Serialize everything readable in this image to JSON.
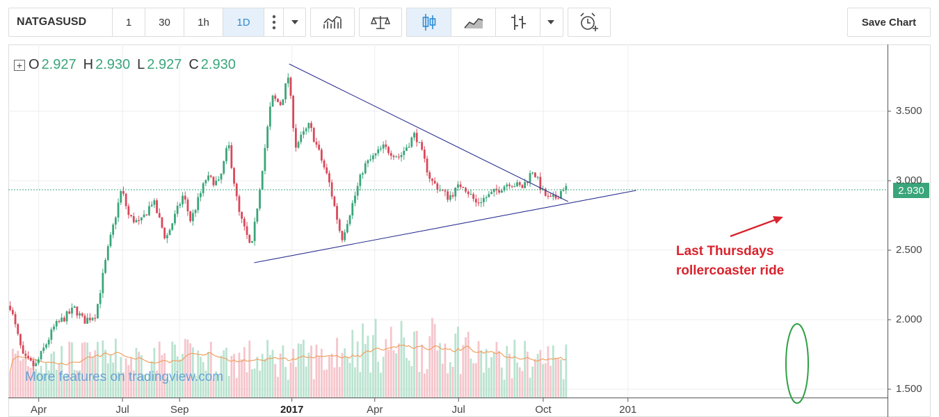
{
  "toolbar": {
    "symbol": "NATGASUSD",
    "intervals": [
      "1",
      "30",
      "1h",
      "1D"
    ],
    "active_interval": "1D",
    "save_label": "Save Chart"
  },
  "legend": {
    "o_label": "O",
    "o_value": "2.927",
    "h_label": "H",
    "h_value": "2.930",
    "l_label": "L",
    "l_value": "2.927",
    "c_label": "C",
    "c_value": "2.930"
  },
  "price_tag": "2.930",
  "watermark": "More features on tradingview.com",
  "annotation": {
    "line1": "Last Thursdays",
    "line2": "rollercoaster ride"
  },
  "colors": {
    "up": "#3aa57a",
    "down": "#d9485a",
    "trendline": "#2b2f8f",
    "arrow": "#d9232d",
    "circle": "#2ea043",
    "ma": "#f0a060"
  },
  "chart_data": {
    "type": "candlestick",
    "y_ticks": [
      "3.500",
      "3.000",
      "2.500",
      "2.000",
      "1.500"
    ],
    "x_ticks": [
      "Apr",
      "Jul",
      "Sep",
      "2017",
      "Apr",
      "Jul",
      "Oct",
      "201"
    ],
    "ylim": [
      1.45,
      3.97
    ],
    "last_close": 2.93,
    "path_points": [
      [
        "2016-03-01",
        2.1
      ],
      [
        "2016-03-15",
        1.73
      ],
      [
        "2016-03-28",
        1.66
      ],
      [
        "2016-04-18",
        1.95
      ],
      [
        "2016-05-10",
        2.08
      ],
      [
        "2016-05-20",
        1.99
      ],
      [
        "2016-06-02",
        2.04
      ],
      [
        "2016-06-14",
        2.47
      ],
      [
        "2016-06-30",
        2.94
      ],
      [
        "2016-07-08",
        2.74
      ],
      [
        "2016-07-20",
        2.69
      ],
      [
        "2016-08-03",
        2.86
      ],
      [
        "2016-08-17",
        2.58
      ],
      [
        "2016-08-29",
        2.78
      ],
      [
        "2016-09-05",
        2.9
      ],
      [
        "2016-09-13",
        2.71
      ],
      [
        "2016-09-30",
        3.02
      ],
      [
        "2016-10-14",
        2.98
      ],
      [
        "2016-10-24",
        3.27
      ],
      [
        "2016-11-04",
        2.78
      ],
      [
        "2016-11-18",
        2.5
      ],
      [
        "2016-11-28",
        3.0
      ],
      [
        "2016-12-10",
        3.6
      ],
      [
        "2016-12-20",
        3.55
      ],
      [
        "2016-12-28",
        3.75
      ],
      [
        "2017-01-05",
        3.25
      ],
      [
        "2017-01-20",
        3.4
      ],
      [
        "2017-02-10",
        3.0
      ],
      [
        "2017-02-24",
        2.58
      ],
      [
        "2017-03-10",
        2.88
      ],
      [
        "2017-03-20",
        3.1
      ],
      [
        "2017-04-10",
        3.24
      ],
      [
        "2017-04-28",
        3.17
      ],
      [
        "2017-05-15",
        3.34
      ],
      [
        "2017-06-01",
        3.0
      ],
      [
        "2017-06-20",
        2.88
      ],
      [
        "2017-07-05",
        2.98
      ],
      [
        "2017-07-20",
        2.84
      ],
      [
        "2017-08-05",
        2.9
      ],
      [
        "2017-08-25",
        2.99
      ],
      [
        "2017-09-08",
        2.95
      ],
      [
        "2017-09-20",
        3.08
      ],
      [
        "2017-09-30",
        2.92
      ],
      [
        "2017-10-08",
        2.86
      ],
      [
        "2017-10-15",
        2.88
      ],
      [
        "2017-10-24",
        2.96
      ],
      [
        "2017-10-28",
        2.93
      ]
    ],
    "trendlines": [
      {
        "from": [
          "2016-11-21",
          2.41
        ],
        "to": [
          "2018-01-10",
          2.93
        ]
      },
      {
        "from": [
          "2016-12-29",
          3.84
        ],
        "to": [
          "2017-10-28",
          2.85
        ]
      }
    ]
  }
}
